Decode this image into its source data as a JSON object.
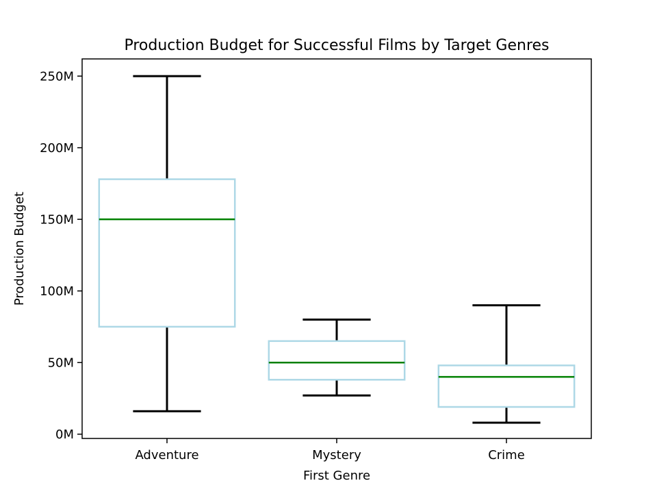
{
  "chart_data": {
    "type": "box",
    "title": "Production Budget for Successful Films by Target Genres",
    "xlabel": "First Genre",
    "ylabel": "Production Budget",
    "ylim": [
      -3,
      262
    ],
    "y_ticks": [
      {
        "value": 0,
        "label": "0M"
      },
      {
        "value": 50,
        "label": "50M"
      },
      {
        "value": 100,
        "label": "100M"
      },
      {
        "value": 150,
        "label": "150M"
      },
      {
        "value": 200,
        "label": "200M"
      },
      {
        "value": 250,
        "label": "250M"
      }
    ],
    "categories": [
      "Adventure",
      "Mystery",
      "Crime"
    ],
    "boxes": [
      {
        "category": "Adventure",
        "whisker_low": 16,
        "q1": 75,
        "median": 150,
        "q3": 178,
        "whisker_high": 250
      },
      {
        "category": "Mystery",
        "whisker_low": 27,
        "q1": 38,
        "median": 50,
        "q3": 65,
        "whisker_high": 80
      },
      {
        "category": "Crime",
        "whisker_low": 8,
        "q1": 19,
        "median": 40,
        "q3": 48,
        "whisker_high": 90
      }
    ],
    "grid": false,
    "unit": "M",
    "colors": {
      "box": "#add8e6",
      "median": "#008000",
      "whisker": "#000000",
      "frame": "#000000"
    }
  }
}
